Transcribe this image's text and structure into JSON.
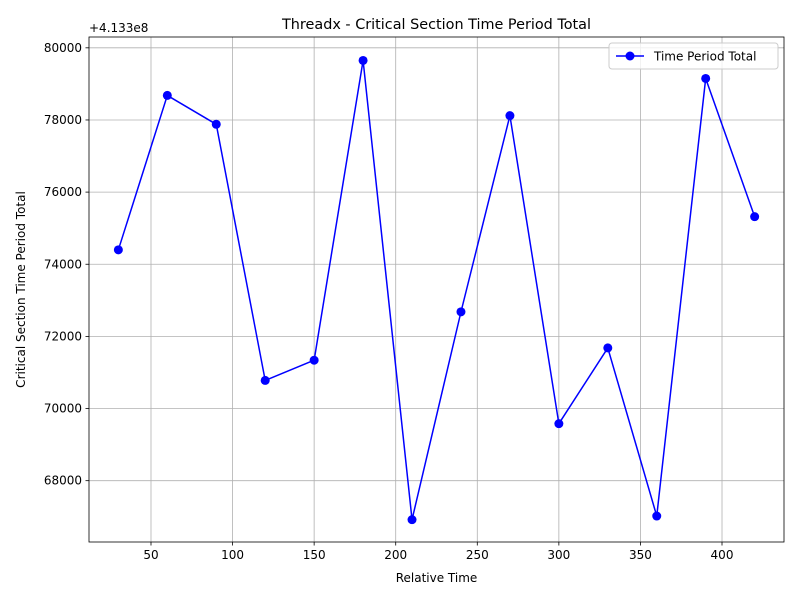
{
  "chart_data": {
    "type": "line",
    "title": "Threadx - Critical Section Time Period Total",
    "xlabel": "Relative Time",
    "ylabel": "Critical Section Time Period Total",
    "y_offset_label": "+4.133e8",
    "y_offset_value": 413300000,
    "xlim": [
      12,
      438
    ],
    "ylim": [
      66300,
      80300
    ],
    "x_ticks": [
      50,
      100,
      150,
      200,
      250,
      300,
      350,
      400
    ],
    "y_ticks": [
      68000,
      70000,
      72000,
      74000,
      76000,
      78000,
      80000
    ],
    "grid": true,
    "legend_position": "top-right",
    "series": [
      {
        "name": "Time Period Total",
        "color": "#0000ff",
        "marker": "circle",
        "x": [
          30,
          60,
          90,
          120,
          150,
          180,
          210,
          240,
          270,
          300,
          330,
          360,
          390,
          420
        ],
        "y": [
          74400,
          78680,
          77880,
          70780,
          71340,
          79650,
          66920,
          72680,
          78120,
          69580,
          71680,
          67020,
          79150,
          75320
        ]
      }
    ]
  }
}
